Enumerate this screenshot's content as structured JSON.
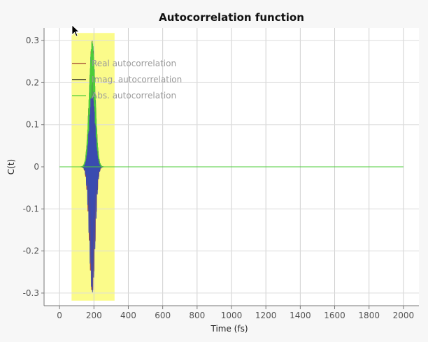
{
  "chart_data": {
    "type": "line",
    "title": "Autocorrelation function",
    "xlabel": "Time (fs)",
    "ylabel": "C(t)",
    "xlim": [
      -90,
      2090
    ],
    "ylim": [
      -0.33,
      0.33
    ],
    "x_ticks": [
      0,
      200,
      400,
      600,
      800,
      1000,
      1200,
      1400,
      1600,
      1800,
      2000
    ],
    "y_ticks": [
      -0.3,
      -0.2,
      -0.1,
      0,
      0.1,
      0.2,
      0.3
    ],
    "y_tick_labels": [
      "-0.3",
      "-0.2",
      "-0.1",
      "0",
      "0.1",
      "0.2",
      "0.3"
    ],
    "grid": true,
    "legend_position": "top-left",
    "highlight_region": {
      "x_start": 70,
      "x_end": 320,
      "color": "#fbfb8a"
    },
    "series": [
      {
        "name": "Real autocorrelation",
        "color": "#9b3b2f",
        "envelope": {
          "center": 190,
          "width": 24,
          "amplitude": 0.3,
          "period": 7,
          "phase": 0.0
        }
      },
      {
        "name": "Imag. autocorrelation",
        "color": "#3a4bb0",
        "envelope": {
          "center": 190,
          "width": 24,
          "amplitude": 0.3,
          "period": 7,
          "phase": 1.57
        }
      },
      {
        "name": "Abs. autocorrelation",
        "color": "#4ccc3a",
        "envelope": {
          "center": 190,
          "width": 24,
          "amplitude": 0.3,
          "period": 0,
          "phase": 0
        }
      }
    ],
    "baseline": {
      "y": 0,
      "color": "#4ccc3a"
    }
  },
  "cursor": {
    "name": "mouse-pointer"
  }
}
